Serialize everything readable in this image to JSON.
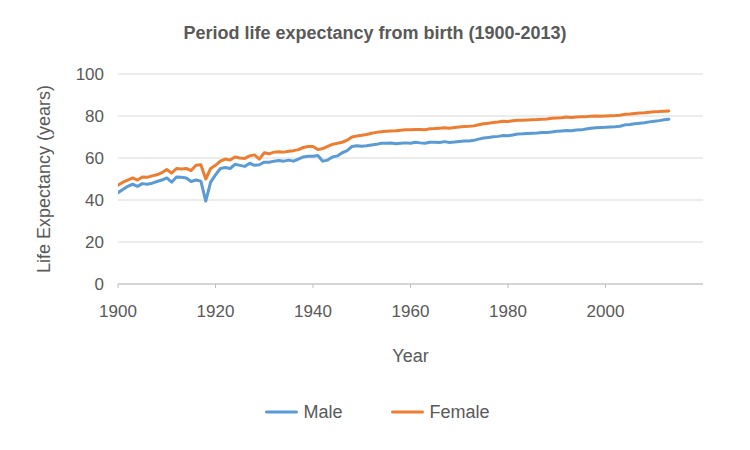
{
  "chart_data": {
    "type": "line",
    "title": "Period life expectancy from birth (1900-2013)",
    "x_label": "Year",
    "y_label": "Life Expectancy (years)",
    "x": [
      1900,
      1901,
      1902,
      1903,
      1904,
      1905,
      1906,
      1907,
      1908,
      1909,
      1910,
      1911,
      1912,
      1913,
      1914,
      1915,
      1916,
      1917,
      1918,
      1919,
      1920,
      1921,
      1922,
      1923,
      1924,
      1925,
      1926,
      1927,
      1928,
      1929,
      1930,
      1931,
      1932,
      1933,
      1934,
      1935,
      1936,
      1937,
      1938,
      1939,
      1940,
      1941,
      1942,
      1943,
      1944,
      1945,
      1946,
      1947,
      1948,
      1949,
      1950,
      1951,
      1952,
      1953,
      1954,
      1955,
      1956,
      1957,
      1958,
      1959,
      1960,
      1961,
      1962,
      1963,
      1964,
      1965,
      1966,
      1967,
      1968,
      1969,
      1970,
      1971,
      1972,
      1973,
      1974,
      1975,
      1976,
      1977,
      1978,
      1979,
      1980,
      1981,
      1982,
      1983,
      1984,
      1985,
      1986,
      1987,
      1988,
      1989,
      1990,
      1991,
      1992,
      1993,
      1994,
      1995,
      1996,
      1997,
      1998,
      1999,
      2000,
      2001,
      2002,
      2003,
      2004,
      2005,
      2006,
      2007,
      2008,
      2009,
      2010,
      2011,
      2012,
      2013
    ],
    "series": [
      {
        "name": "Male",
        "color": "#5b9bd5",
        "values": [
          43.5,
          45.0,
          46.5,
          47.5,
          46.5,
          47.8,
          47.5,
          48.0,
          48.8,
          49.5,
          50.5,
          48.5,
          51.0,
          50.8,
          50.5,
          48.8,
          49.5,
          49.0,
          39.5,
          48.5,
          52.0,
          55.0,
          55.5,
          55.0,
          57.0,
          56.5,
          56.0,
          57.5,
          56.5,
          56.8,
          58.0,
          58.0,
          58.5,
          58.8,
          58.5,
          59.0,
          58.5,
          59.5,
          60.5,
          60.8,
          60.8,
          61.2,
          58.5,
          59.0,
          60.5,
          61.0,
          62.5,
          63.5,
          65.5,
          65.8,
          65.6,
          65.8,
          66.2,
          66.5,
          67.0,
          67.0,
          67.1,
          66.8,
          67.0,
          67.2,
          67.0,
          67.5,
          67.2,
          67.0,
          67.5,
          67.5,
          67.4,
          67.8,
          67.4,
          67.6,
          67.9,
          68.1,
          68.1,
          68.4,
          69.0,
          69.5,
          69.8,
          70.1,
          70.3,
          70.7,
          70.6,
          71.0,
          71.4,
          71.5,
          71.7,
          71.8,
          71.9,
          72.1,
          72.1,
          72.4,
          72.7,
          72.9,
          73.1,
          73.0,
          73.3,
          73.4,
          73.8,
          74.2,
          74.4,
          74.5,
          74.6,
          74.8,
          74.9,
          75.1,
          75.8,
          76.0,
          76.3,
          76.6,
          76.8,
          77.2,
          77.5,
          77.8,
          78.2,
          78.5
        ]
      },
      {
        "name": "Female",
        "color": "#ed7d31",
        "values": [
          47.0,
          48.5,
          49.5,
          50.5,
          49.5,
          51.0,
          50.8,
          51.5,
          52.0,
          53.0,
          54.5,
          52.8,
          55.0,
          54.8,
          55.0,
          54.0,
          56.5,
          56.8,
          50.0,
          55.0,
          56.5,
          58.5,
          59.5,
          59.0,
          60.5,
          60.0,
          59.8,
          61.0,
          61.5,
          59.5,
          62.5,
          62.0,
          62.8,
          63.0,
          62.8,
          63.2,
          63.5,
          64.0,
          65.0,
          65.5,
          65.5,
          64.0,
          64.5,
          65.5,
          66.5,
          67.0,
          67.5,
          68.5,
          70.0,
          70.5,
          70.8,
          71.2,
          71.8,
          72.2,
          72.5,
          72.7,
          72.9,
          73.0,
          73.2,
          73.4,
          73.4,
          73.6,
          73.6,
          73.5,
          73.9,
          74.0,
          74.2,
          74.4,
          74.2,
          74.5,
          74.8,
          75.0,
          75.1,
          75.3,
          75.8,
          76.3,
          76.6,
          76.9,
          77.1,
          77.5,
          77.4,
          77.7,
          78.0,
          78.0,
          78.1,
          78.2,
          78.3,
          78.5,
          78.6,
          78.9,
          79.1,
          79.2,
          79.5,
          79.3,
          79.5,
          79.6,
          79.7,
          79.9,
          80.0,
          79.9,
          80.0,
          80.1,
          80.2,
          80.4,
          80.8,
          80.9,
          81.2,
          81.4,
          81.5,
          81.8,
          82.0,
          82.1,
          82.3,
          82.4
        ]
      }
    ],
    "xlim": [
      1900,
      2020
    ],
    "xticks": [
      1900,
      1920,
      1940,
      1960,
      1980,
      2000
    ],
    "ylim": [
      0,
      100
    ],
    "yticks": [
      0,
      20,
      40,
      60,
      80,
      100
    ],
    "grid": true,
    "legend": "bottom"
  }
}
